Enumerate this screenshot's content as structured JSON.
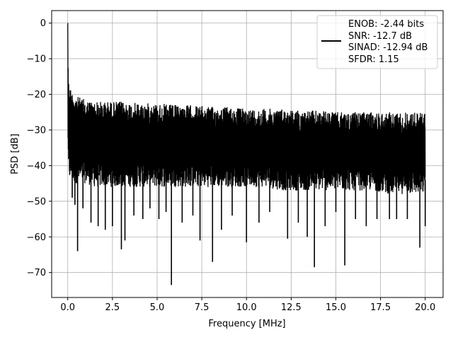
{
  "chart_data": {
    "type": "line",
    "title": "",
    "xlabel": "Frequency [MHz]",
    "ylabel": "PSD [dB]",
    "xlim": [
      -0.9,
      21.0
    ],
    "ylim": [
      -77.0,
      3.5
    ],
    "xticks": [
      0.0,
      2.5,
      5.0,
      7.5,
      10.0,
      12.5,
      15.0,
      17.5,
      20.0
    ],
    "xtick_labels": [
      "0.0",
      "2.5",
      "5.0",
      "7.5",
      "10.0",
      "12.5",
      "15.0",
      "17.5",
      "20.0"
    ],
    "yticks": [
      0,
      -10,
      -20,
      -30,
      -40,
      -50,
      -60,
      -70
    ],
    "ytick_labels": [
      "0",
      "−10",
      "−20",
      "−30",
      "−40",
      "−50",
      "−60",
      "−70"
    ],
    "grid": true,
    "legend_position": "top-right",
    "line_color": "#000000",
    "legend": [
      "ENOB: -2.44 bits",
      "SNR: -12.7 dB",
      "SINAD: -12.94 dB",
      "SFDR: 1.15"
    ],
    "series": [
      {
        "x": [
          0.0,
          0.02,
          0.05,
          0.1,
          0.15,
          0.2,
          0.3,
          0.4,
          0.5,
          0.75,
          1.0,
          1.5,
          2.0,
          2.5,
          3.0,
          4.0,
          5.0,
          6.0,
          7.0,
          8.0,
          9.0,
          10.0,
          11.0,
          12.0,
          13.0,
          14.0,
          15.0,
          16.0,
          17.0,
          18.0,
          19.0,
          20.0
        ],
        "upper": [
          0,
          -8,
          -16,
          -17,
          -18,
          -19,
          -19.5,
          -20,
          -20.5,
          -21,
          -21.5,
          -22,
          -22,
          -22,
          -22,
          -22.5,
          -22.5,
          -23,
          -23,
          -23.5,
          -23.5,
          -24,
          -24,
          -24,
          -24.5,
          -24.5,
          -25,
          -25,
          -25,
          -25,
          -25,
          -25
        ],
        "lower": [
          -9,
          -42,
          -43,
          -44,
          -44,
          -44,
          -45,
          -45,
          -45,
          -45,
          -45,
          -46,
          -46,
          -46,
          -46,
          -46,
          -46,
          -46,
          -46,
          -46,
          -46,
          -46,
          -46,
          -47,
          -47,
          -47,
          -47,
          -47,
          -47,
          -48,
          -48,
          -48
        ],
        "dips": [
          [
            0.25,
            -49.0
          ],
          [
            0.4,
            -51.0
          ],
          [
            0.55,
            -64.0
          ],
          [
            0.85,
            -52.0
          ],
          [
            1.3,
            -56.0
          ],
          [
            1.7,
            -57.0
          ],
          [
            2.1,
            -58.0
          ],
          [
            2.5,
            -57.0
          ],
          [
            3.0,
            -63.5
          ],
          [
            3.2,
            -61.0
          ],
          [
            3.7,
            -54.0
          ],
          [
            4.2,
            -55.0
          ],
          [
            4.6,
            -52.0
          ],
          [
            5.1,
            -55.0
          ],
          [
            5.5,
            -53.0
          ],
          [
            5.8,
            -73.5
          ],
          [
            6.4,
            -56.0
          ],
          [
            7.0,
            -54.0
          ],
          [
            7.4,
            -61.0
          ],
          [
            8.1,
            -67.0
          ],
          [
            8.6,
            -58.0
          ],
          [
            9.2,
            -54.0
          ],
          [
            10.0,
            -61.5
          ],
          [
            10.7,
            -56.0
          ],
          [
            11.3,
            -53.0
          ],
          [
            12.3,
            -60.5
          ],
          [
            12.9,
            -56.0
          ],
          [
            13.4,
            -60.0
          ],
          [
            13.8,
            -68.5
          ],
          [
            14.4,
            -57.0
          ],
          [
            15.0,
            -53.0
          ],
          [
            15.5,
            -68.0
          ],
          [
            16.1,
            -55.0
          ],
          [
            16.7,
            -57.0
          ],
          [
            17.3,
            -55.0
          ],
          [
            18.0,
            -55.0
          ],
          [
            18.4,
            -55.0
          ],
          [
            19.0,
            -55.0
          ],
          [
            19.7,
            -63.0
          ],
          [
            20.0,
            -57.0
          ]
        ]
      }
    ]
  }
}
